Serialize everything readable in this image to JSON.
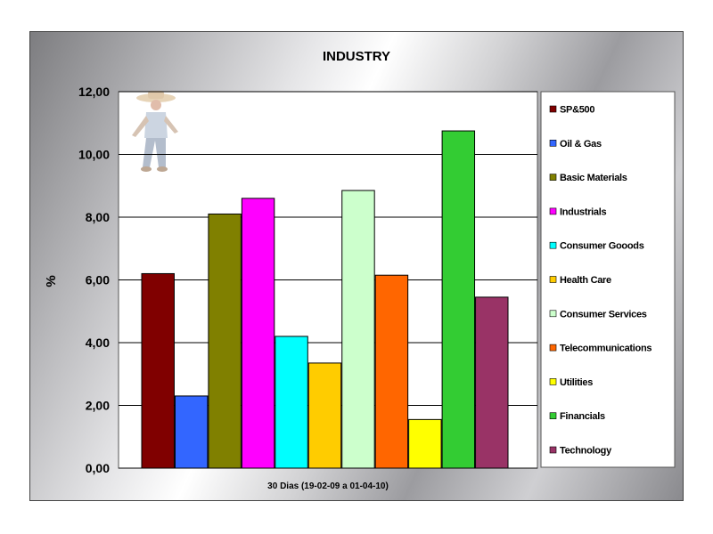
{
  "chart_data": {
    "type": "bar",
    "title": "INDUSTRY",
    "ylabel": "%",
    "xlabel": "",
    "category_label": "30 Dias (19-02-09 a 01-04-10)",
    "ylim": [
      0,
      12
    ],
    "ytick_step": 2,
    "ytick_labels": [
      "0,00",
      "2,00",
      "4,00",
      "6,00",
      "8,00",
      "10,00",
      "12,00"
    ],
    "grid": true,
    "legend_position": "right",
    "series": [
      {
        "name": "SP&500",
        "value": 6.2,
        "color": "#800000"
      },
      {
        "name": "Oil & Gas",
        "value": 2.3,
        "color": "#3366ff"
      },
      {
        "name": "Basic Materials",
        "value": 8.1,
        "color": "#808000"
      },
      {
        "name": "Industrials",
        "value": 8.6,
        "color": "#ff00ff"
      },
      {
        "name": "Consumer Gooods",
        "value": 4.2,
        "color": "#00ffff"
      },
      {
        "name": "Health Care",
        "value": 3.35,
        "color": "#ffcc00"
      },
      {
        "name": "Consumer Services",
        "value": 8.85,
        "color": "#ccffcc"
      },
      {
        "name": "Telecommunications",
        "value": 6.15,
        "color": "#ff6600"
      },
      {
        "name": "Utilities",
        "value": 1.55,
        "color": "#ffff00"
      },
      {
        "name": "Financials",
        "value": 10.75,
        "color": "#33cc33"
      },
      {
        "name": "Technology",
        "value": 5.45,
        "color": "#993366"
      }
    ]
  }
}
